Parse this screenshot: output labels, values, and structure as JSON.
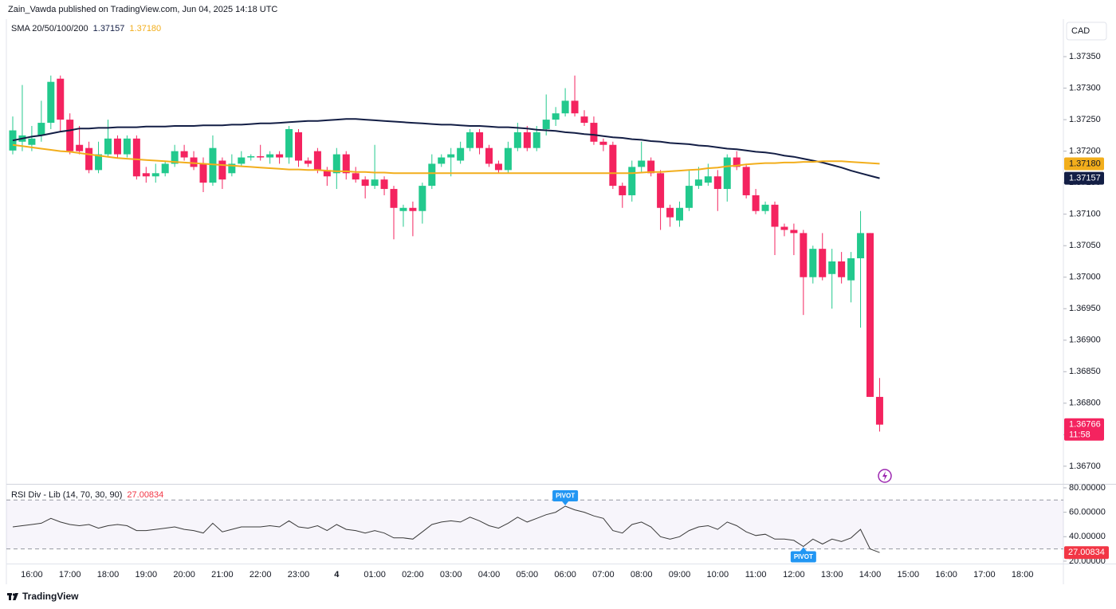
{
  "header": "Zain_Vawda published on TradingView.com, Jun 04, 2025 14:18 UTC",
  "footer": "TradingView",
  "chart_data": [
    {
      "type": "candlestick",
      "currency": "CAD",
      "up_color": "#22c98d",
      "down_color": "#f4235f",
      "categories": [
        null,
        null,
        "16:00",
        null,
        null,
        null,
        "17:00",
        null,
        null,
        null,
        "18:00",
        null,
        null,
        null,
        "19:00",
        null,
        null,
        null,
        "20:00",
        null,
        null,
        null,
        "21:00",
        null,
        null,
        null,
        "22:00",
        null,
        null,
        null,
        "23:00",
        null,
        null,
        null,
        "4",
        null,
        null,
        null,
        "01:00",
        null,
        null,
        null,
        "02:00",
        null,
        null,
        null,
        "03:00",
        null,
        null,
        null,
        "04:00",
        null,
        null,
        null,
        "05:00",
        null,
        null,
        null,
        "06:00",
        null,
        null,
        null,
        "07:00",
        null,
        null,
        null,
        "08:00",
        null,
        null,
        null,
        "09:00",
        null,
        null,
        null,
        "10:00",
        null,
        null,
        null,
        "11:00",
        null,
        null,
        null,
        "12:00",
        null,
        null,
        null,
        "13:00",
        null,
        null,
        null,
        "14:00",
        null,
        null,
        null,
        "15:00",
        null,
        null,
        null,
        "16:00",
        null,
        null,
        null,
        "17:00",
        null,
        null,
        null,
        "18:00"
      ],
      "open": [
        1.37201,
        1.37215,
        1.3721,
        1.37225,
        1.37245,
        1.37315,
        1.3725,
        1.3721,
        1.37205,
        1.3717,
        1.37195,
        1.3722,
        1.37195,
        1.3722,
        1.37165,
        1.3716,
        1.37165,
        1.3718,
        1.372,
        1.3719,
        1.3718,
        1.3715,
        1.37185,
        1.37165,
        1.3718,
        1.3719,
        1.37192,
        1.3719,
        1.37195,
        1.3719,
        1.3723,
        1.37185,
        1.372,
        1.3717,
        1.37165,
        1.37195,
        1.37165,
        1.37155,
        1.37145,
        1.37155,
        1.3714,
        1.37105,
        1.3711,
        1.37105,
        1.37145,
        1.3718,
        1.3719,
        1.37185,
        1.37205,
        1.3723,
        1.37205,
        1.3718,
        1.3717,
        1.37205,
        1.3723,
        1.37205,
        1.37235,
        1.3725,
        1.3726,
        1.3728,
        1.37255,
        1.37245,
        1.37215,
        1.3721,
        1.37145,
        1.3713,
        1.37175,
        1.37185,
        1.37165,
        1.3711,
        1.3709,
        1.3711,
        1.37145,
        1.3715,
        1.3716,
        1.3714,
        1.3719,
        1.37175,
        1.3713,
        1.37105,
        1.37115,
        1.3708,
        1.37075,
        1.3707,
        1.37,
        1.37045,
        1.37005,
        1.37025,
        1.36995,
        1.3703,
        1.3707,
        1.3681,
        null,
        null,
        null,
        null,
        null,
        null,
        null,
        null,
        null,
        null,
        null,
        null,
        null,
        null,
        null
      ],
      "high": [
        1.37255,
        1.37305,
        1.3724,
        1.3728,
        1.3732,
        1.3732,
        1.3726,
        1.3724,
        1.37215,
        1.37215,
        1.3725,
        1.37225,
        1.37225,
        1.37225,
        1.37175,
        1.3718,
        1.37185,
        1.3721,
        1.3721,
        1.372,
        1.3719,
        1.37225,
        1.3719,
        1.37195,
        1.372,
        1.37195,
        1.3721,
        1.372,
        1.372,
        1.3724,
        1.37235,
        1.3719,
        1.37205,
        1.37175,
        1.37205,
        1.372,
        1.37175,
        1.3716,
        1.3721,
        1.3716,
        1.37145,
        1.37115,
        1.3712,
        1.3715,
        1.37195,
        1.37195,
        1.37205,
        1.37215,
        1.37235,
        1.37235,
        1.3721,
        1.37185,
        1.37215,
        1.37245,
        1.3724,
        1.3724,
        1.3729,
        1.3727,
        1.373,
        1.3732,
        1.37265,
        1.37255,
        1.3722,
        1.37215,
        1.3715,
        1.37185,
        1.37215,
        1.3719,
        1.3717,
        1.37115,
        1.3712,
        1.3717,
        1.37175,
        1.3718,
        1.3717,
        1.37195,
        1.372,
        1.3718,
        1.3714,
        1.3712,
        1.3712,
        1.37085,
        1.37085,
        1.37075,
        1.3705,
        1.3707,
        1.37045,
        1.3704,
        1.3704,
        1.37105,
        1.3707,
        1.3684,
        null,
        null,
        null,
        null,
        null,
        null,
        null,
        null,
        null,
        null,
        null,
        null,
        null,
        null,
        null
      ],
      "low": [
        1.37195,
        1.372,
        1.372,
        1.37215,
        1.37235,
        1.3723,
        1.37195,
        1.37195,
        1.37165,
        1.37165,
        1.3719,
        1.3719,
        1.3719,
        1.37155,
        1.3715,
        1.3715,
        1.3716,
        1.37175,
        1.37185,
        1.3717,
        1.37135,
        1.37145,
        1.3714,
        1.3716,
        1.37175,
        1.37185,
        1.37185,
        1.3718,
        1.3718,
        1.3718,
        1.37175,
        1.37175,
        1.37165,
        1.37145,
        1.3714,
        1.37155,
        1.3715,
        1.37125,
        1.3714,
        1.3713,
        1.3706,
        1.3708,
        1.37065,
        1.37085,
        1.3714,
        1.37175,
        1.3716,
        1.3718,
        1.372,
        1.37195,
        1.37175,
        1.37165,
        1.37165,
        1.372,
        1.372,
        1.372,
        1.37225,
        1.3724,
        1.37255,
        1.37255,
        1.3724,
        1.3721,
        1.372,
        1.3714,
        1.3711,
        1.3712,
        1.37165,
        1.3716,
        1.37075,
        1.3708,
        1.3708,
        1.37105,
        1.3714,
        1.37145,
        1.37105,
        1.3712,
        1.3717,
        1.37125,
        1.371,
        1.371,
        1.37035,
        1.37065,
        1.37035,
        1.3694,
        1.3699,
        1.36995,
        1.3695,
        1.3699,
        1.3696,
        1.3692,
        1.3681,
        1.36755,
        null,
        null,
        null,
        null,
        null,
        null,
        null,
        null,
        null,
        null,
        null,
        null,
        null,
        null,
        null
      ],
      "close": [
        1.37233,
        1.37225,
        1.3722,
        1.37245,
        1.3731,
        1.3725,
        1.372,
        1.372,
        1.3717,
        1.37195,
        1.3722,
        1.37195,
        1.3722,
        1.3716,
        1.3716,
        1.37165,
        1.3718,
        1.372,
        1.3719,
        1.37175,
        1.3715,
        1.37205,
        1.37155,
        1.3718,
        1.3719,
        1.37192,
        1.3719,
        1.37195,
        1.3719,
        1.37235,
        1.37185,
        1.3718,
        1.3717,
        1.3716,
        1.37195,
        1.37165,
        1.37155,
        1.37145,
        1.37155,
        1.3714,
        1.3711,
        1.3711,
        1.37105,
        1.37145,
        1.3718,
        1.3719,
        1.37195,
        1.37205,
        1.3723,
        1.37205,
        1.3718,
        1.3717,
        1.37205,
        1.3723,
        1.37205,
        1.3723,
        1.3725,
        1.3726,
        1.3728,
        1.3726,
        1.37245,
        1.37215,
        1.3721,
        1.37145,
        1.3713,
        1.37175,
        1.37185,
        1.37165,
        1.3711,
        1.37095,
        1.3711,
        1.37145,
        1.37155,
        1.3716,
        1.3714,
        1.3719,
        1.37175,
        1.3713,
        1.37105,
        1.37115,
        1.3708,
        1.37075,
        1.3707,
        1.37,
        1.37045,
        1.37,
        1.37025,
        1.37,
        1.3703,
        1.3707,
        1.3681,
        1.36766,
        null,
        null,
        null,
        null,
        null,
        null,
        null,
        null,
        null,
        null,
        null,
        null,
        null,
        null,
        null
      ],
      "last_close_label": "1.36766",
      "countdown": "11:58",
      "ylim": [
        1.36672,
        1.37407
      ],
      "yticks": [
        {
          "value": 1.3735,
          "label": "1.37350"
        },
        {
          "value": 1.373,
          "label": "1.37300"
        },
        {
          "value": 1.3725,
          "label": "1.37250"
        },
        {
          "value": 1.372,
          "label": "1.37200"
        },
        {
          "value": 1.3715,
          "label": "1.37150"
        },
        {
          "value": 1.371,
          "label": "1.37100"
        },
        {
          "value": 1.3705,
          "label": "1.37050"
        },
        {
          "value": 1.37,
          "label": "1.37000"
        },
        {
          "value": 1.3695,
          "label": "1.36950"
        },
        {
          "value": 1.369,
          "label": "1.36900"
        },
        {
          "value": 1.3685,
          "label": "1.36850"
        },
        {
          "value": 1.368,
          "label": "1.36800"
        },
        {
          "value": 1.3675,
          "label": "1.36750"
        },
        {
          "value": 1.367,
          "label": "1.36700"
        }
      ],
      "overlay": {
        "name": "SMA 20/50/100/200",
        "lines": [
          {
            "color": "#131e45",
            "last_label": "1.37157",
            "values": [
              1.37217,
              1.3722,
              1.37223,
              1.37225,
              1.37228,
              1.37231,
              1.37233,
              1.37236,
              1.37236,
              1.37237,
              1.37237,
              1.37238,
              1.37238,
              1.37238,
              1.37239,
              1.37239,
              1.37239,
              1.3724,
              1.3724,
              1.3724,
              1.37241,
              1.37241,
              1.37241,
              1.37242,
              1.37242,
              1.37243,
              1.37244,
              1.37244,
              1.37245,
              1.37246,
              1.37247,
              1.37248,
              1.37248,
              1.37249,
              1.3725,
              1.37251,
              1.37251,
              1.3725,
              1.37249,
              1.37248,
              1.37247,
              1.37246,
              1.37245,
              1.37244,
              1.37243,
              1.37242,
              1.37242,
              1.37241,
              1.3724,
              1.3724,
              1.37239,
              1.37238,
              1.37238,
              1.37237,
              1.37236,
              1.37234,
              1.37233,
              1.37232,
              1.3723,
              1.37229,
              1.37227,
              1.37226,
              1.37224,
              1.37222,
              1.37221,
              1.37219,
              1.37218,
              1.37216,
              1.37215,
              1.37213,
              1.37212,
              1.37211,
              1.37209,
              1.37208,
              1.37206,
              1.37204,
              1.37203,
              1.37201,
              1.37199,
              1.37198,
              1.37196,
              1.37193,
              1.37191,
              1.37188,
              1.37185,
              1.37182,
              1.37178,
              1.37174,
              1.37169,
              1.37165,
              1.37161,
              1.37157,
              null,
              null,
              null,
              null,
              null,
              null,
              null,
              null,
              null,
              null,
              null,
              null,
              null,
              null,
              null
            ]
          },
          {
            "color": "#f2ae1c",
            "last_label": "1.37180",
            "values": [
              1.3721,
              1.37208,
              1.37206,
              1.37204,
              1.37202,
              1.372,
              1.37199,
              1.37197,
              1.37195,
              1.37193,
              1.37191,
              1.37189,
              1.37188,
              1.37187,
              1.37186,
              1.37185,
              1.37184,
              1.37183,
              1.37182,
              1.37181,
              1.3718,
              1.37179,
              1.37178,
              1.37177,
              1.37176,
              1.37175,
              1.37174,
              1.37173,
              1.37172,
              1.37171,
              1.37171,
              1.3717,
              1.3717,
              1.37169,
              1.37168,
              1.37168,
              1.37167,
              1.37167,
              1.37166,
              1.37166,
              1.37165,
              1.37165,
              1.37165,
              1.37165,
              1.37165,
              1.37165,
              1.37165,
              1.37165,
              1.37165,
              1.37165,
              1.37165,
              1.37165,
              1.37165,
              1.37165,
              1.37165,
              1.37165,
              1.37165,
              1.37165,
              1.37165,
              1.37165,
              1.37165,
              1.37165,
              1.37165,
              1.37165,
              1.37165,
              1.37165,
              1.37166,
              1.37167,
              1.37167,
              1.37168,
              1.37169,
              1.3717,
              1.37171,
              1.37173,
              1.37174,
              1.37176,
              1.37177,
              1.37179,
              1.3718,
              1.37181,
              1.37181,
              1.37182,
              1.37182,
              1.37183,
              1.37183,
              1.37184,
              1.37184,
              1.37184,
              1.37183,
              1.37182,
              1.37181,
              1.3718,
              null,
              null,
              null,
              null,
              null,
              null,
              null,
              null,
              null,
              null,
              null,
              null,
              null,
              null,
              null
            ]
          }
        ]
      }
    },
    {
      "type": "line",
      "name": "RSI Div - Lib (14, 70, 30, 90)",
      "color": "#3a3a3a",
      "last_label": "27.00834",
      "values": [
        48,
        49,
        50,
        51,
        55,
        52,
        50,
        49,
        50,
        47,
        49,
        50,
        49,
        45,
        45,
        46,
        47,
        48,
        46,
        45,
        43,
        51,
        44,
        46,
        48,
        48,
        48,
        49,
        48,
        53,
        48,
        47,
        49,
        45,
        50,
        46,
        45,
        43,
        45,
        43,
        39,
        39,
        38,
        44,
        50,
        52,
        53,
        52,
        56,
        53,
        49,
        47,
        51,
        56,
        52,
        55,
        58,
        60,
        65,
        62,
        60,
        57,
        55,
        45,
        43,
        50,
        52,
        48,
        40,
        38,
        40,
        45,
        48,
        49,
        46,
        52,
        49,
        44,
        41,
        42,
        38,
        38,
        37,
        32,
        38,
        34,
        38,
        36,
        39,
        46,
        30,
        27.00834,
        null,
        null,
        null,
        null,
        null,
        null,
        null,
        null,
        null,
        null,
        null,
        null,
        null,
        null,
        null
      ],
      "levels": [
        70,
        30
      ],
      "ylim": [
        18,
        82.6
      ],
      "yticks": [
        {
          "value": 80,
          "label": "80.00000"
        },
        {
          "value": 60,
          "label": "60.00000"
        },
        {
          "value": 40,
          "label": "40.00000"
        },
        {
          "value": 20,
          "label": "20.00000"
        }
      ],
      "annotations": [
        {
          "text": "PIVOT",
          "index": 58,
          "side": "top"
        },
        {
          "text": "PIVOT",
          "index": 83,
          "side": "bottom"
        }
      ]
    }
  ]
}
